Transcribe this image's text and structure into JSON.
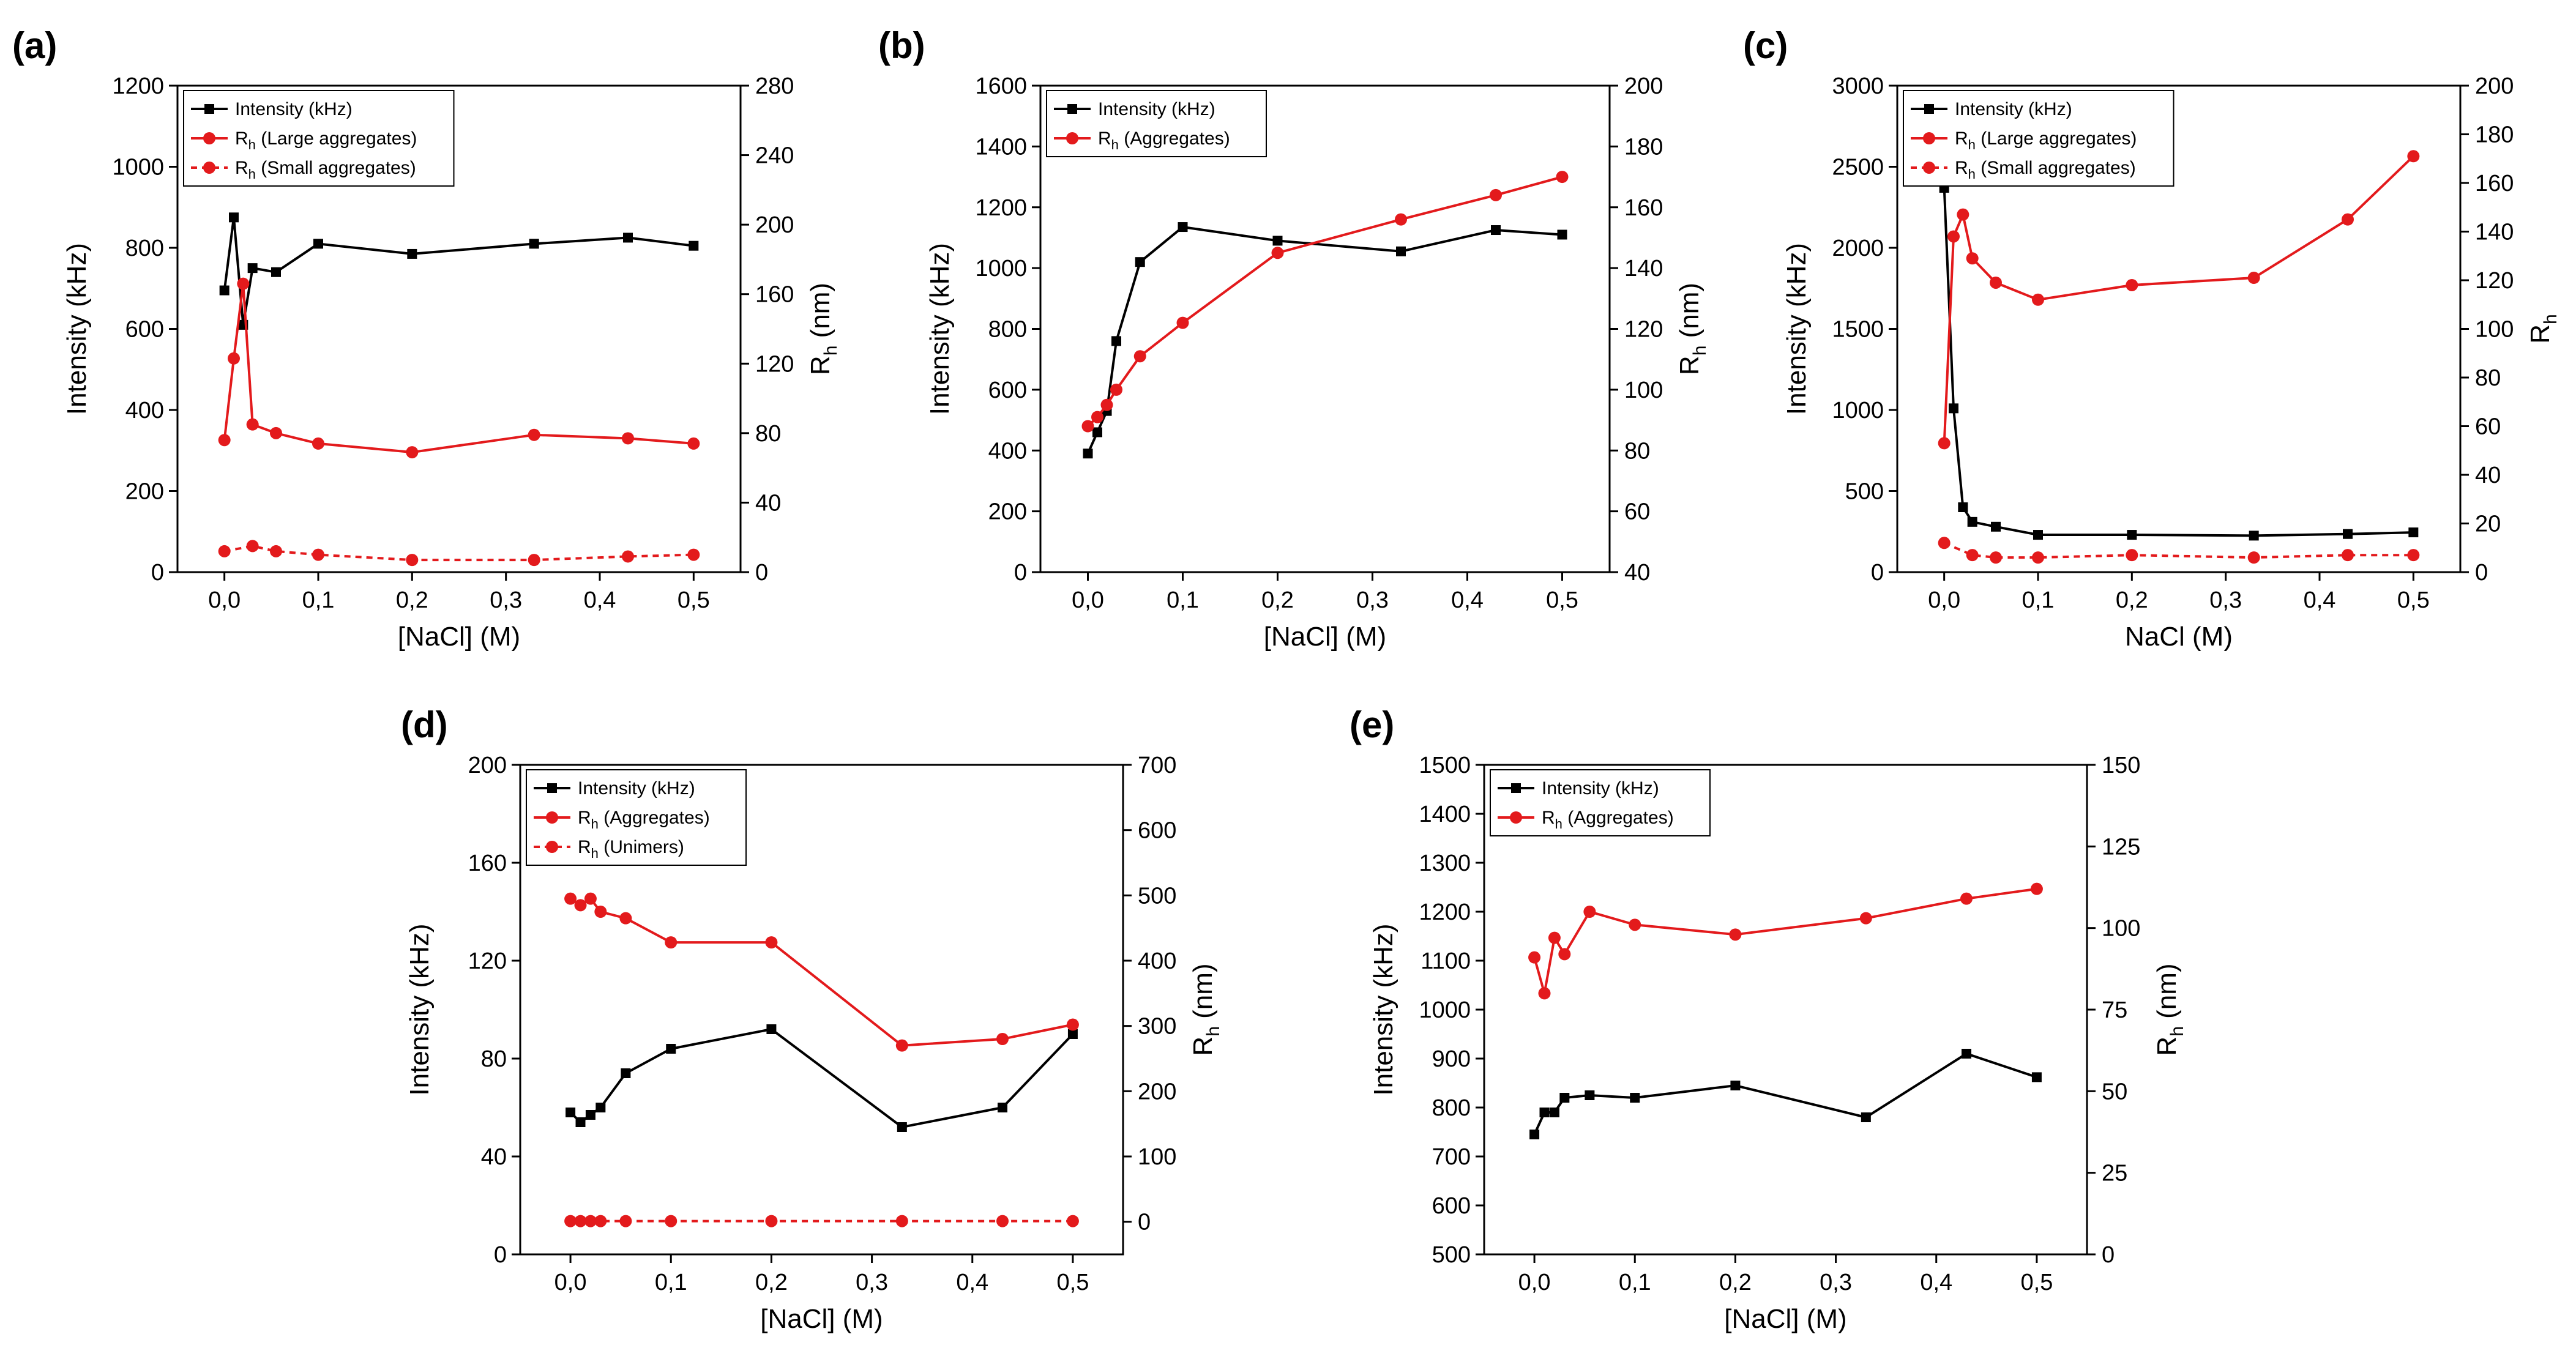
{
  "colors": {
    "black_series": "#000000",
    "red_series": "#e31a1c"
  },
  "chart_data": [
    {
      "panel": "(a)",
      "type": "line",
      "xlabel": "[NaCl] (M)",
      "ylabel_left": "Intensity (kHz)",
      "ylabel_right": "R_h (nm)",
      "xlim": [
        -0.05,
        0.55
      ],
      "ylim_left": [
        0,
        1200
      ],
      "ylim_right": [
        0,
        280
      ],
      "xticks": [
        0.0,
        0.1,
        0.2,
        0.3,
        0.4,
        0.5
      ],
      "xtick_labels": [
        "0,0",
        "0,1",
        "0,2",
        "0,3",
        "0,4",
        "0,5"
      ],
      "yticks_left": [
        0,
        200,
        400,
        600,
        800,
        1000,
        1200
      ],
      "yticks_right": [
        0,
        40,
        80,
        120,
        160,
        200,
        240,
        280
      ],
      "legend_position": "top-left",
      "series": [
        {
          "name": "Intensity (kHz)",
          "label_main": "Intensity (kHz)",
          "axis": "left",
          "color": "#000000",
          "marker": "square",
          "dashed": false,
          "x": [
            0,
            0.01,
            0.02,
            0.03,
            0.055,
            0.1,
            0.2,
            0.33,
            0.43,
            0.5
          ],
          "y": [
            695,
            875,
            610,
            750,
            740,
            810,
            785,
            810,
            825,
            805
          ]
        },
        {
          "name": "Rh (Large aggregates)",
          "label_main": "R",
          "label_sub": "h",
          "label_rest": " (Large aggregates)",
          "axis": "right",
          "color": "#e31a1c",
          "marker": "circle",
          "dashed": false,
          "x": [
            0,
            0.01,
            0.02,
            0.03,
            0.055,
            0.1,
            0.2,
            0.33,
            0.43,
            0.5
          ],
          "y": [
            76,
            123,
            166,
            85,
            80,
            74,
            69,
            79,
            77,
            74
          ]
        },
        {
          "name": "Rh (Small aggregates)",
          "label_main": "R",
          "label_sub": "h",
          "label_rest": " (Small aggregates)",
          "axis": "right",
          "color": "#e31a1c",
          "marker": "circle",
          "dashed": true,
          "x": [
            0,
            0.03,
            0.055,
            0.1,
            0.2,
            0.33,
            0.43,
            0.5
          ],
          "y": [
            12,
            15,
            12,
            10,
            7,
            7,
            9,
            10
          ]
        }
      ]
    },
    {
      "panel": "(b)",
      "type": "line",
      "xlabel": "[NaCl] (M)",
      "ylabel_left": "Intensity (kHz)",
      "ylabel_right": "R_h (nm)",
      "xlim": [
        -0.05,
        0.55
      ],
      "ylim_left": [
        0,
        1600
      ],
      "ylim_right": [
        40,
        200
      ],
      "xticks": [
        0.0,
        0.1,
        0.2,
        0.3,
        0.4,
        0.5
      ],
      "xtick_labels": [
        "0,0",
        "0,1",
        "0,2",
        "0,3",
        "0,4",
        "0,5"
      ],
      "yticks_left": [
        0,
        200,
        400,
        600,
        800,
        1000,
        1200,
        1400,
        1600
      ],
      "yticks_right": [
        40,
        60,
        80,
        100,
        120,
        140,
        160,
        180,
        200
      ],
      "legend_position": "top-left",
      "series": [
        {
          "name": "Intensity (kHz)",
          "label_main": "Intensity (kHz)",
          "axis": "left",
          "color": "#000000",
          "marker": "square",
          "dashed": false,
          "x": [
            0,
            0.01,
            0.02,
            0.03,
            0.055,
            0.1,
            0.2,
            0.33,
            0.43,
            0.5
          ],
          "y": [
            390,
            460,
            530,
            760,
            1020,
            1135,
            1090,
            1055,
            1125,
            1110
          ]
        },
        {
          "name": "Rh (Aggregates)",
          "label_main": "R",
          "label_sub": "h",
          "label_rest": " (Aggregates)",
          "axis": "right",
          "color": "#e31a1c",
          "marker": "circle",
          "dashed": false,
          "x": [
            0,
            0.01,
            0.02,
            0.03,
            0.055,
            0.1,
            0.2,
            0.33,
            0.43,
            0.5
          ],
          "y": [
            88,
            91,
            95,
            100,
            111,
            122,
            145,
            156,
            164,
            170
          ]
        }
      ]
    },
    {
      "panel": "(c)",
      "type": "line",
      "xlabel": "NaCl (M)",
      "ylabel_left": "Intensity (kHz)",
      "ylabel_right": "R_h",
      "xlim": [
        -0.05,
        0.55
      ],
      "ylim_left": [
        0,
        3000
      ],
      "ylim_right": [
        0,
        200
      ],
      "xticks": [
        0.0,
        0.1,
        0.2,
        0.3,
        0.4,
        0.5
      ],
      "xtick_labels": [
        "0,0",
        "0,1",
        "0,2",
        "0,3",
        "0,4",
        "0,5"
      ],
      "yticks_left": [
        0,
        500,
        1000,
        1500,
        2000,
        2500,
        3000
      ],
      "yticks_right": [
        0,
        20,
        40,
        60,
        80,
        100,
        120,
        140,
        160,
        180,
        200
      ],
      "legend_position": "top-left",
      "series": [
        {
          "name": "Intensity (kHz)",
          "label_main": "Intensity (kHz)",
          "axis": "left",
          "color": "#000000",
          "marker": "square",
          "dashed": false,
          "x": [
            0,
            0.01,
            0.02,
            0.03,
            0.055,
            0.1,
            0.2,
            0.33,
            0.43,
            0.5
          ],
          "y": [
            2370,
            1010,
            400,
            310,
            280,
            230,
            230,
            225,
            235,
            245
          ]
        },
        {
          "name": "Rh (Large aggregates)",
          "label_main": "R",
          "label_sub": "h",
          "label_rest": " (Large aggregates)",
          "axis": "right",
          "color": "#e31a1c",
          "marker": "circle",
          "dashed": false,
          "x": [
            0,
            0.01,
            0.02,
            0.03,
            0.055,
            0.1,
            0.2,
            0.33,
            0.43,
            0.5
          ],
          "y": [
            53,
            138,
            147,
            129,
            119,
            112,
            118,
            121,
            145,
            171
          ]
        },
        {
          "name": "Rh (Small aggregates)",
          "label_main": "R",
          "label_sub": "h",
          "label_rest": " (Small aggregates)",
          "axis": "right",
          "color": "#e31a1c",
          "marker": "circle",
          "dashed": true,
          "x": [
            0,
            0.03,
            0.055,
            0.1,
            0.2,
            0.33,
            0.43,
            0.5
          ],
          "y": [
            12,
            7,
            6,
            6,
            7,
            6,
            7,
            7
          ]
        }
      ]
    },
    {
      "panel": "(d)",
      "type": "line",
      "xlabel": "[NaCl] (M)",
      "ylabel_left": "Intensity (kHz)",
      "ylabel_right": "R_h (nm)",
      "xlim": [
        -0.05,
        0.55
      ],
      "ylim_left": [
        0,
        200
      ],
      "ylim_right": [
        -50,
        700
      ],
      "xticks": [
        0.0,
        0.1,
        0.2,
        0.3,
        0.4,
        0.5
      ],
      "xtick_labels": [
        "0,0",
        "0,1",
        "0,2",
        "0,3",
        "0,4",
        "0,5"
      ],
      "yticks_left": [
        0,
        40,
        80,
        120,
        160,
        200
      ],
      "yticks_right": [
        0,
        100,
        200,
        300,
        400,
        500,
        600,
        700
      ],
      "legend_position": "top-left",
      "series": [
        {
          "name": "Intensity (kHz)",
          "label_main": "Intensity (kHz)",
          "axis": "left",
          "color": "#000000",
          "marker": "square",
          "dashed": false,
          "x": [
            0,
            0.01,
            0.02,
            0.03,
            0.055,
            0.1,
            0.2,
            0.33,
            0.43,
            0.5
          ],
          "y": [
            58,
            54,
            57,
            60,
            74,
            84,
            92,
            52,
            60,
            90
          ]
        },
        {
          "name": "Rh (Aggregates)",
          "label_main": "R",
          "label_sub": "h",
          "label_rest": " (Aggregates)",
          "axis": "right",
          "color": "#e31a1c",
          "marker": "circle",
          "dashed": false,
          "x": [
            0,
            0.01,
            0.02,
            0.03,
            0.055,
            0.1,
            0.2,
            0.33,
            0.43,
            0.5
          ],
          "y": [
            495,
            485,
            495,
            475,
            465,
            428,
            428,
            270,
            280,
            302
          ]
        },
        {
          "name": "Rh (Unimers)",
          "label_main": "R",
          "label_sub": "h",
          "label_rest": " (Unimers)",
          "axis": "right",
          "color": "#e31a1c",
          "marker": "circle",
          "dashed": true,
          "x": [
            0,
            0.01,
            0.02,
            0.03,
            0.055,
            0.1,
            0.2,
            0.33,
            0.43,
            0.5
          ],
          "y": [
            1,
            1,
            1,
            1,
            1,
            1,
            1,
            1,
            1,
            1
          ]
        }
      ]
    },
    {
      "panel": "(e)",
      "type": "line",
      "xlabel": "[NaCl] (M)",
      "ylabel_left": "Intensity (kHz)",
      "ylabel_right": "R_h (nm)",
      "xlim": [
        -0.05,
        0.55
      ],
      "ylim_left": [
        500,
        1500
      ],
      "ylim_right": [
        0,
        150
      ],
      "xticks": [
        0.0,
        0.1,
        0.2,
        0.3,
        0.4,
        0.5
      ],
      "xtick_labels": [
        "0,0",
        "0,1",
        "0,2",
        "0,3",
        "0,4",
        "0,5"
      ],
      "yticks_left": [
        500,
        600,
        700,
        800,
        900,
        1000,
        1100,
        1200,
        1300,
        1400,
        1500
      ],
      "yticks_right": [
        0,
        25,
        50,
        75,
        100,
        125,
        150
      ],
      "legend_position": "top-left",
      "series": [
        {
          "name": "Intensity (kHz)",
          "label_main": "Intensity (kHz)",
          "axis": "left",
          "color": "#000000",
          "marker": "square",
          "dashed": false,
          "x": [
            0,
            0.01,
            0.02,
            0.03,
            0.055,
            0.1,
            0.2,
            0.33,
            0.43,
            0.5
          ],
          "y": [
            745,
            790,
            790,
            820,
            825,
            820,
            845,
            780,
            910,
            862
          ]
        },
        {
          "name": "Rh (Aggregates)",
          "label_main": "R",
          "label_sub": "h",
          "label_rest": " (Aggregates)",
          "axis": "right",
          "color": "#e31a1c",
          "marker": "circle",
          "dashed": false,
          "x": [
            0,
            0.01,
            0.02,
            0.03,
            0.055,
            0.1,
            0.2,
            0.33,
            0.43,
            0.5
          ],
          "y": [
            91,
            80,
            97,
            92,
            105,
            101,
            98,
            103,
            109,
            112
          ]
        }
      ]
    }
  ]
}
